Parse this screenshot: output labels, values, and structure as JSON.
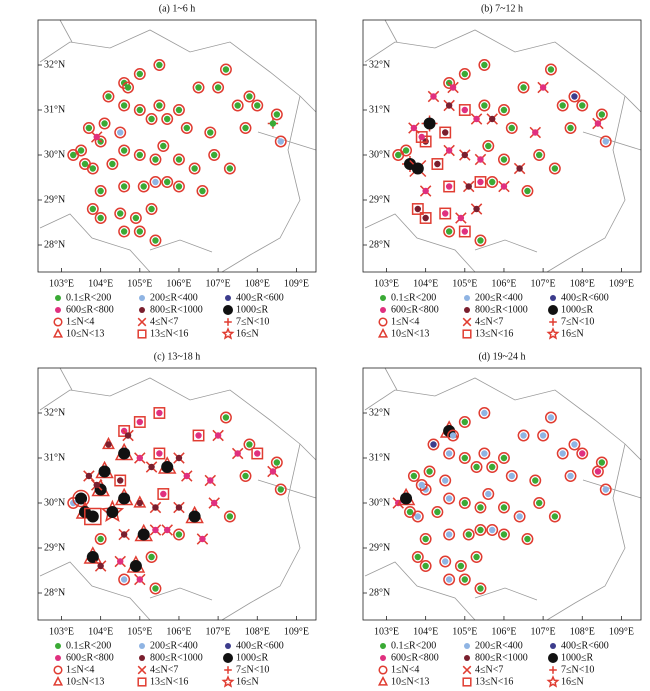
{
  "legend": {
    "marker_color": "#e03c31",
    "rain": [
      {
        "label": "0.1≤R<200",
        "color": "#3aaa35"
      },
      {
        "label": "200≤R<400",
        "color": "#8fb4e3"
      },
      {
        "label": "400≤R<600",
        "color": "#3c3c8c"
      },
      {
        "label": "600≤R<800",
        "color": "#e0307f"
      },
      {
        "label": "800≤R<1000",
        "color": "#7a1f2e"
      },
      {
        "label": "1000≤R",
        "color": "#111111"
      }
    ],
    "count": [
      {
        "label": "1≤N<4",
        "shape": "circle"
      },
      {
        "label": "4≤N<7",
        "shape": "x"
      },
      {
        "label": "7≤N<10",
        "shape": "plus"
      },
      {
        "label": "10≤N<13",
        "shape": "triangle"
      },
      {
        "label": "13≤N<16",
        "shape": "square"
      },
      {
        "label": "16≤N",
        "shape": "star"
      }
    ]
  },
  "chart_data": [
    {
      "type": "scatter",
      "title": "(a) 1~6 h",
      "xlim": [
        102.4,
        109.5
      ],
      "ylim": [
        27.4,
        33.0
      ],
      "xticks": [
        {
          "value": 103,
          "label": "103°E"
        },
        {
          "value": 104,
          "label": "104°E"
        },
        {
          "value": 105,
          "label": "105°E"
        },
        {
          "value": 106,
          "label": "106°E"
        },
        {
          "value": 107,
          "label": "107°E"
        },
        {
          "value": 108,
          "label": "108°E"
        },
        {
          "value": 109,
          "label": "109°E"
        }
      ],
      "yticks": [
        {
          "value": 28,
          "label": "28°N"
        },
        {
          "value": 29,
          "label": "29°N"
        },
        {
          "value": 30,
          "label": "30°N"
        },
        {
          "value": 31,
          "label": "31°N"
        },
        {
          "value": 32,
          "label": "32°N"
        }
      ],
      "x": [
        105.5,
        104.6,
        104.7,
        105.0,
        104.2,
        104.6,
        105.0,
        105.5,
        106.0,
        106.5,
        107.0,
        107.2,
        107.5,
        108.0,
        108.5,
        107.8,
        103.7,
        104.0,
        104.1,
        104.5,
        105.3,
        105.7,
        106.2,
        106.8,
        107.7,
        108.4,
        108.6,
        103.3,
        103.5,
        103.6,
        103.8,
        104.3,
        104.6,
        105.0,
        105.4,
        105.6,
        106.0,
        106.4,
        106.9,
        107.3,
        104.0,
        104.6,
        105.1,
        105.4,
        105.7,
        106.0,
        106.6,
        103.8,
        104.5,
        104.9,
        105.3,
        104.6,
        105.0,
        105.4,
        104.0,
        103.9
      ],
      "y": [
        32.0,
        31.6,
        31.5,
        31.8,
        31.3,
        31.1,
        31.0,
        31.1,
        31.0,
        31.5,
        31.5,
        31.9,
        31.1,
        31.1,
        30.9,
        31.3,
        30.6,
        30.3,
        30.7,
        30.5,
        30.8,
        30.8,
        30.6,
        30.5,
        30.6,
        30.7,
        30.3,
        30.0,
        30.1,
        29.8,
        29.7,
        29.8,
        30.1,
        30.0,
        29.9,
        30.2,
        29.9,
        29.7,
        30.0,
        29.7,
        29.2,
        29.3,
        29.3,
        29.4,
        29.4,
        29.3,
        29.2,
        28.8,
        28.7,
        28.6,
        28.8,
        28.3,
        28.3,
        28.1,
        28.6,
        30.4
      ],
      "rain": [
        0,
        0,
        0,
        0,
        0,
        0,
        0,
        0,
        0,
        0,
        0,
        0,
        0,
        0,
        0,
        0,
        0,
        0,
        0,
        1,
        0,
        0,
        0,
        0,
        0,
        0,
        1,
        0,
        0,
        0,
        0,
        0,
        0,
        0,
        0,
        0,
        0,
        0,
        0,
        0,
        0,
        0,
        0,
        1,
        0,
        0,
        0,
        0,
        0,
        0,
        0,
        0,
        0,
        0,
        0,
        3
      ],
      "count": [
        0,
        0,
        0,
        0,
        0,
        0,
        0,
        0,
        0,
        0,
        0,
        0,
        0,
        0,
        0,
        0,
        0,
        0,
        0,
        0,
        0,
        0,
        0,
        0,
        0,
        2,
        0,
        0,
        0,
        0,
        0,
        0,
        0,
        0,
        0,
        0,
        0,
        0,
        0,
        0,
        0,
        0,
        0,
        0,
        0,
        0,
        0,
        0,
        0,
        0,
        0,
        0,
        0,
        0,
        0,
        1
      ]
    },
    {
      "type": "scatter",
      "title": "(b) 7~12 h",
      "xlim": [
        102.4,
        109.5
      ],
      "ylim": [
        27.4,
        33.0
      ],
      "xticks": [
        {
          "value": 103,
          "label": "103°E"
        },
        {
          "value": 104,
          "label": "104°E"
        },
        {
          "value": 105,
          "label": "105°E"
        },
        {
          "value": 106,
          "label": "106°E"
        },
        {
          "value": 107,
          "label": "107°E"
        },
        {
          "value": 108,
          "label": "108°E"
        },
        {
          "value": 109,
          "label": "109°E"
        }
      ],
      "yticks": [
        {
          "value": 28,
          "label": "28°N"
        },
        {
          "value": 29,
          "label": "29°N"
        },
        {
          "value": 30,
          "label": "30°N"
        },
        {
          "value": 31,
          "label": "31°N"
        },
        {
          "value": 32,
          "label": "32°N"
        }
      ],
      "x": [
        105.5,
        104.6,
        104.7,
        105.0,
        104.2,
        104.6,
        105.0,
        105.5,
        106.0,
        106.5,
        107.0,
        107.2,
        107.5,
        108.0,
        108.5,
        107.8,
        103.7,
        104.0,
        104.1,
        104.5,
        105.3,
        105.7,
        106.2,
        106.8,
        107.7,
        108.4,
        108.6,
        103.3,
        103.5,
        103.6,
        103.8,
        104.3,
        104.6,
        105.0,
        105.4,
        105.6,
        106.0,
        106.4,
        106.9,
        107.3,
        104.0,
        104.6,
        105.1,
        105.4,
        105.7,
        106.0,
        106.6,
        103.8,
        104.5,
        104.9,
        105.3,
        104.6,
        105.0,
        105.4,
        104.0,
        103.9
      ],
      "y": [
        32.0,
        31.6,
        31.5,
        31.8,
        31.3,
        31.1,
        31.0,
        31.1,
        31.0,
        31.5,
        31.5,
        31.9,
        31.1,
        31.1,
        30.9,
        31.3,
        30.6,
        30.3,
        30.7,
        30.5,
        30.8,
        30.8,
        30.6,
        30.5,
        30.6,
        30.7,
        30.3,
        30.0,
        30.1,
        29.8,
        29.7,
        29.8,
        30.1,
        30.0,
        29.9,
        30.2,
        29.9,
        29.7,
        30.0,
        29.7,
        29.2,
        29.3,
        29.3,
        29.4,
        29.4,
        29.3,
        29.2,
        28.8,
        28.7,
        28.6,
        28.8,
        28.3,
        28.3,
        28.1,
        28.6,
        30.4
      ],
      "rain": [
        0,
        0,
        3,
        0,
        3,
        4,
        3,
        0,
        0,
        0,
        3,
        0,
        0,
        0,
        0,
        2,
        3,
        4,
        5,
        4,
        3,
        4,
        0,
        3,
        0,
        3,
        1,
        0,
        0,
        5,
        5,
        4,
        3,
        4,
        3,
        0,
        0,
        4,
        0,
        0,
        3,
        3,
        4,
        3,
        0,
        3,
        0,
        4,
        3,
        3,
        4,
        0,
        3,
        0,
        4,
        3
      ],
      "count": [
        0,
        0,
        1,
        0,
        1,
        1,
        4,
        0,
        0,
        0,
        1,
        0,
        0,
        0,
        0,
        0,
        1,
        4,
        2,
        4,
        1,
        1,
        0,
        1,
        0,
        1,
        0,
        0,
        0,
        2,
        1,
        4,
        1,
        1,
        1,
        0,
        0,
        1,
        0,
        0,
        1,
        4,
        1,
        4,
        0,
        1,
        0,
        4,
        4,
        1,
        1,
        0,
        4,
        0,
        4,
        4
      ]
    },
    {
      "type": "scatter",
      "title": "(c) 13~18 h",
      "xlim": [
        102.4,
        109.5
      ],
      "ylim": [
        27.4,
        33.0
      ],
      "xticks": [
        {
          "value": 103,
          "label": "103°E"
        },
        {
          "value": 104,
          "label": "104°E"
        },
        {
          "value": 105,
          "label": "105°E"
        },
        {
          "value": 106,
          "label": "106°E"
        },
        {
          "value": 107,
          "label": "107°E"
        },
        {
          "value": 108,
          "label": "108°E"
        },
        {
          "value": 109,
          "label": "109°E"
        }
      ],
      "yticks": [
        {
          "value": 28,
          "label": "28°N"
        },
        {
          "value": 29,
          "label": "29°N"
        },
        {
          "value": 30,
          "label": "30°N"
        },
        {
          "value": 31,
          "label": "31°N"
        },
        {
          "value": 32,
          "label": "32°N"
        }
      ],
      "x": [
        105.5,
        104.6,
        104.7,
        105.0,
        104.2,
        104.6,
        105.0,
        105.5,
        106.0,
        106.5,
        107.0,
        107.2,
        107.5,
        108.0,
        108.5,
        107.8,
        103.7,
        104.0,
        104.1,
        104.5,
        105.3,
        105.7,
        106.2,
        106.8,
        107.7,
        108.4,
        108.6,
        103.3,
        103.5,
        103.6,
        103.8,
        104.3,
        104.6,
        105.0,
        105.4,
        105.6,
        106.0,
        106.4,
        106.9,
        107.3,
        104.0,
        104.6,
        105.1,
        105.4,
        105.7,
        106.0,
        106.6,
        103.8,
        104.5,
        104.9,
        105.3,
        104.6,
        105.0,
        105.4,
        104.0,
        103.9
      ],
      "y": [
        32.0,
        31.6,
        31.5,
        31.8,
        31.3,
        31.1,
        31.0,
        31.1,
        31.0,
        31.5,
        31.5,
        31.9,
        31.1,
        31.1,
        30.9,
        31.3,
        30.6,
        30.3,
        30.7,
        30.5,
        30.8,
        30.8,
        30.6,
        30.5,
        30.6,
        30.7,
        30.3,
        30.0,
        30.1,
        29.8,
        29.7,
        29.8,
        30.1,
        30.0,
        29.9,
        30.2,
        29.9,
        29.7,
        30.0,
        29.7,
        29.2,
        29.3,
        29.3,
        29.4,
        29.4,
        29.3,
        29.2,
        28.8,
        28.7,
        28.6,
        28.8,
        28.3,
        28.3,
        28.1,
        28.6,
        30.4
      ],
      "rain": [
        3,
        3,
        4,
        3,
        4,
        5,
        3,
        3,
        4,
        3,
        3,
        0,
        3,
        3,
        0,
        0,
        4,
        5,
        5,
        4,
        4,
        5,
        3,
        3,
        0,
        3,
        0,
        1,
        5,
        5,
        5,
        5,
        5,
        4,
        4,
        3,
        4,
        5,
        3,
        0,
        0,
        4,
        5,
        3,
        3,
        0,
        3,
        5,
        3,
        5,
        0,
        1,
        3,
        0,
        4,
        4
      ],
      "count": [
        4,
        4,
        1,
        4,
        3,
        3,
        1,
        4,
        1,
        4,
        1,
        0,
        1,
        4,
        0,
        0,
        1,
        3,
        3,
        4,
        1,
        3,
        1,
        1,
        0,
        1,
        0,
        0,
        0,
        3,
        4,
        5,
        3,
        3,
        1,
        4,
        1,
        3,
        1,
        0,
        0,
        1,
        3,
        1,
        1,
        0,
        1,
        3,
        1,
        3,
        0,
        0,
        1,
        0,
        1,
        1
      ]
    },
    {
      "type": "scatter",
      "title": "(d) 19~24 h",
      "xlim": [
        102.4,
        109.5
      ],
      "ylim": [
        27.4,
        33.0
      ],
      "xticks": [
        {
          "value": 103,
          "label": "103°E"
        },
        {
          "value": 104,
          "label": "104°E"
        },
        {
          "value": 105,
          "label": "105°E"
        },
        {
          "value": 106,
          "label": "106°E"
        },
        {
          "value": 107,
          "label": "107°E"
        },
        {
          "value": 108,
          "label": "108°E"
        },
        {
          "value": 109,
          "label": "109°E"
        }
      ],
      "yticks": [
        {
          "value": 28,
          "label": "28°N"
        },
        {
          "value": 29,
          "label": "29°N"
        },
        {
          "value": 30,
          "label": "30°N"
        },
        {
          "value": 31,
          "label": "31°N"
        },
        {
          "value": 32,
          "label": "32°N"
        }
      ],
      "x": [
        105.5,
        104.6,
        104.7,
        105.0,
        104.2,
        104.6,
        105.0,
        105.5,
        106.0,
        106.5,
        107.0,
        107.2,
        107.5,
        108.0,
        108.5,
        107.8,
        103.7,
        104.0,
        104.1,
        104.5,
        105.3,
        105.7,
        106.2,
        106.8,
        107.7,
        108.4,
        108.6,
        103.3,
        103.5,
        103.6,
        103.8,
        104.3,
        104.6,
        105.0,
        105.4,
        105.6,
        106.0,
        106.4,
        106.9,
        107.3,
        104.0,
        104.6,
        105.1,
        105.4,
        105.7,
        106.0,
        106.6,
        103.8,
        104.5,
        104.9,
        105.3,
        104.6,
        105.0,
        105.4,
        104.0,
        103.9
      ],
      "y": [
        32.0,
        31.6,
        31.5,
        31.8,
        31.3,
        31.1,
        31.0,
        31.1,
        31.0,
        31.5,
        31.5,
        31.9,
        31.1,
        31.1,
        30.9,
        31.3,
        30.6,
        30.3,
        30.7,
        30.5,
        30.8,
        30.8,
        30.6,
        30.5,
        30.6,
        30.7,
        30.3,
        30.0,
        30.1,
        29.8,
        29.7,
        29.8,
        30.1,
        30.0,
        29.9,
        30.2,
        29.9,
        29.7,
        30.0,
        29.7,
        29.2,
        29.3,
        29.3,
        29.4,
        29.4,
        29.3,
        29.2,
        28.8,
        28.7,
        28.6,
        28.8,
        28.3,
        28.3,
        28.1,
        28.6,
        30.4
      ],
      "rain": [
        1,
        5,
        1,
        0,
        2,
        1,
        0,
        1,
        0,
        1,
        1,
        1,
        1,
        3,
        0,
        1,
        0,
        1,
        0,
        1,
        0,
        0,
        1,
        0,
        1,
        3,
        1,
        3,
        5,
        0,
        1,
        0,
        1,
        0,
        0,
        1,
        0,
        1,
        0,
        0,
        0,
        1,
        0,
        0,
        1,
        0,
        0,
        0,
        1,
        0,
        0,
        1,
        0,
        0,
        0,
        1
      ],
      "count": [
        0,
        3,
        0,
        0,
        0,
        0,
        0,
        0,
        0,
        0,
        0,
        0,
        0,
        0,
        0,
        0,
        0,
        0,
        0,
        0,
        0,
        0,
        0,
        0,
        0,
        0,
        0,
        1,
        3,
        0,
        0,
        0,
        0,
        0,
        0,
        0,
        0,
        0,
        0,
        0,
        0,
        0,
        0,
        0,
        0,
        0,
        0,
        0,
        0,
        0,
        0,
        0,
        0,
        0,
        0,
        0
      ]
    }
  ]
}
